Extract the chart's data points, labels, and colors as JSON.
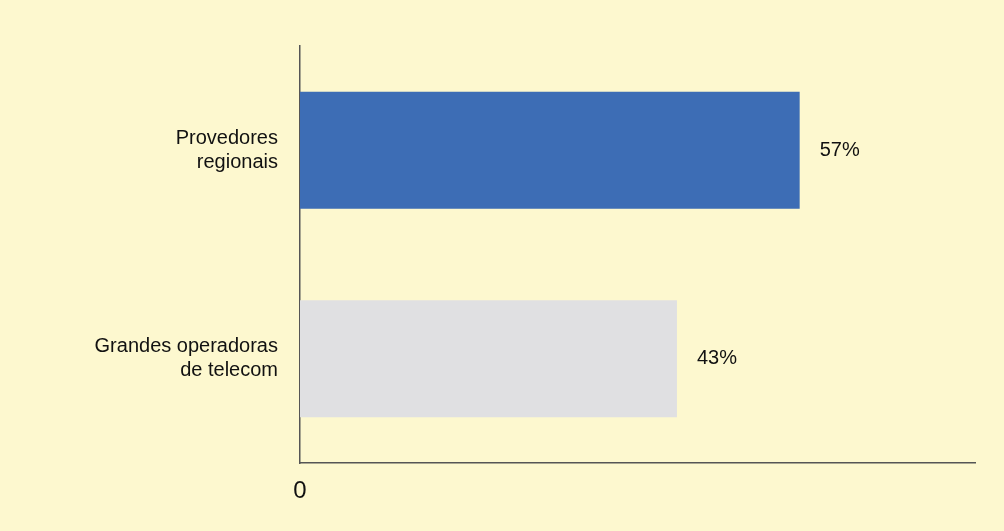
{
  "chart_data": {
    "type": "bar",
    "orientation": "horizontal",
    "categories": [
      "Provedores regionais",
      "Grandes operadoras de telecom"
    ],
    "values": [
      57,
      43
    ],
    "colors": [
      "#3d6db5",
      "#e0e0e2"
    ],
    "value_labels": [
      "57%",
      "43%"
    ],
    "xlim": [
      0,
      77
    ],
    "annotations": [
      "0"
    ],
    "grid": false,
    "legend": false
  }
}
